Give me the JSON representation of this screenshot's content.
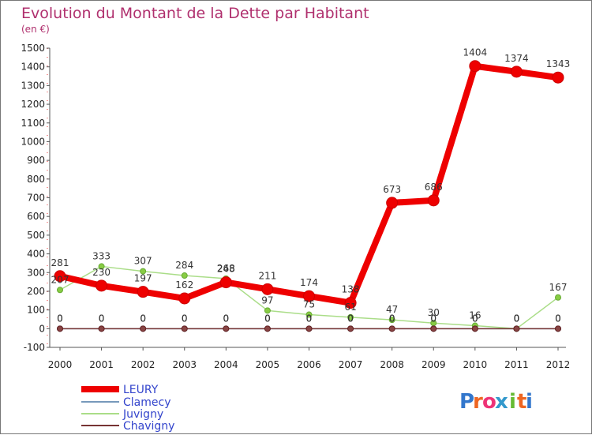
{
  "chart_data": {
    "type": "line",
    "title": "Evolution du Montant de la Dette par Habitant",
    "subtitle": "(en €)",
    "categories": [
      "2000",
      "2001",
      "2002",
      "2003",
      "2004",
      "2005",
      "2006",
      "2007",
      "2008",
      "2009",
      "2010",
      "2011",
      "2012"
    ],
    "y_ticks": [
      "-100",
      "0",
      "100",
      "200",
      "300",
      "400",
      "500",
      "600",
      "700",
      "800",
      "900",
      "1000",
      "1100",
      "1200",
      "1300",
      "1400",
      "1500"
    ],
    "ylim": [
      -100,
      1500
    ],
    "grid": false,
    "legend_position": "bottom-left",
    "series": [
      {
        "name": "LEURY",
        "color": "#ee0000",
        "values": [
          281,
          230,
          197,
          162,
          248,
          211,
          174,
          138,
          673,
          686,
          1404,
          1374,
          1343
        ],
        "labels": [
          "281",
          "230",
          "197",
          "162",
          "248",
          "211",
          "174",
          "138",
          "673",
          "686",
          "1404",
          "1374",
          "1343"
        ]
      },
      {
        "name": "Clamecy",
        "color": "#7799bb",
        "values": [
          0,
          0,
          0,
          0,
          0,
          0,
          0,
          0,
          0,
          0,
          0,
          0,
          0
        ],
        "labels": [
          "0",
          "0",
          "0",
          "0",
          "0",
          "0",
          "0",
          "0",
          "0",
          "0",
          "0",
          "0",
          "0"
        ]
      },
      {
        "name": "Juvigny",
        "color": "#88cc55",
        "values": [
          207,
          333,
          307,
          284,
          268,
          97,
          75,
          61,
          47,
          30,
          16,
          0,
          167
        ],
        "labels": [
          "207",
          "333",
          "307",
          "284",
          "268",
          "97",
          "75",
          "61",
          "47",
          "30",
          "16",
          "0",
          "167"
        ]
      },
      {
        "name": "Chavigny",
        "color": "#773333",
        "values": [
          0,
          0,
          0,
          0,
          0,
          0,
          0,
          0,
          0,
          0,
          0,
          0,
          0
        ],
        "labels": [
          "0",
          "0",
          "0",
          "0",
          "0",
          "0",
          "0",
          "0",
          "0",
          "0",
          "0",
          "0",
          "0"
        ]
      }
    ]
  },
  "logo": {
    "text": "Proxiti",
    "letters": [
      "P",
      "r",
      "o",
      "x",
      "i",
      "t",
      "i"
    ]
  }
}
